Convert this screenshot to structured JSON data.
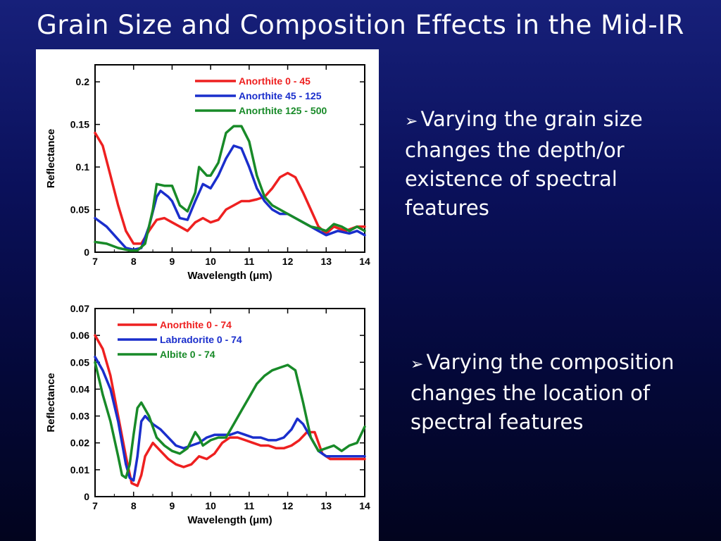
{
  "slide": {
    "title": "Grain Size and Composition Effects in the Mid-IR",
    "bullets": [
      {
        "marker": "➢",
        "text": "Varying the grain size changes the depth/or existence of spectral features"
      },
      {
        "marker": "➢",
        "text": "Varying the composition changes the location of spectral features"
      }
    ]
  },
  "chart_data": [
    {
      "type": "line",
      "xlabel": "Wavelength (μm)",
      "ylabel": "Reflectance",
      "xlim": [
        7,
        14
      ],
      "ylim": [
        0,
        0.22
      ],
      "xticks": [
        7,
        8,
        9,
        10,
        11,
        12,
        13,
        14
      ],
      "yticks": [
        0,
        0.05,
        0.1,
        0.15,
        0.2
      ],
      "ytick_labels": [
        "0",
        "0.05",
        "0.1",
        "0.15",
        "0.2"
      ],
      "legend_position": "top-right",
      "series": [
        {
          "name": "Anorthite 0 - 45",
          "color": "#ee2020",
          "points": [
            [
              7,
              0.14
            ],
            [
              7.2,
              0.125
            ],
            [
              7.4,
              0.09
            ],
            [
              7.6,
              0.055
            ],
            [
              7.8,
              0.025
            ],
            [
              8.0,
              0.01
            ],
            [
              8.2,
              0.01
            ],
            [
              8.4,
              0.025
            ],
            [
              8.6,
              0.038
            ],
            [
              8.8,
              0.04
            ],
            [
              9.0,
              0.035
            ],
            [
              9.2,
              0.03
            ],
            [
              9.4,
              0.025
            ],
            [
              9.6,
              0.035
            ],
            [
              9.8,
              0.04
            ],
            [
              10.0,
              0.035
            ],
            [
              10.2,
              0.038
            ],
            [
              10.4,
              0.05
            ],
            [
              10.6,
              0.055
            ],
            [
              10.8,
              0.06
            ],
            [
              11.0,
              0.06
            ],
            [
              11.2,
              0.062
            ],
            [
              11.4,
              0.065
            ],
            [
              11.6,
              0.075
            ],
            [
              11.8,
              0.088
            ],
            [
              12.0,
              0.093
            ],
            [
              12.2,
              0.088
            ],
            [
              12.4,
              0.07
            ],
            [
              12.6,
              0.05
            ],
            [
              12.8,
              0.03
            ],
            [
              13.0,
              0.022
            ],
            [
              13.2,
              0.03
            ],
            [
              13.5,
              0.025
            ],
            [
              13.8,
              0.03
            ],
            [
              14.0,
              0.03
            ]
          ]
        },
        {
          "name": "Anorthite 45 - 125",
          "color": "#1a2ecc",
          "points": [
            [
              7,
              0.04
            ],
            [
              7.3,
              0.03
            ],
            [
              7.6,
              0.015
            ],
            [
              7.8,
              0.005
            ],
            [
              8.0,
              0.003
            ],
            [
              8.2,
              0.005
            ],
            [
              8.4,
              0.03
            ],
            [
              8.6,
              0.065
            ],
            [
              8.7,
              0.072
            ],
            [
              8.9,
              0.065
            ],
            [
              9.0,
              0.06
            ],
            [
              9.2,
              0.04
            ],
            [
              9.4,
              0.038
            ],
            [
              9.6,
              0.06
            ],
            [
              9.8,
              0.08
            ],
            [
              10.0,
              0.075
            ],
            [
              10.2,
              0.09
            ],
            [
              10.4,
              0.11
            ],
            [
              10.6,
              0.125
            ],
            [
              10.8,
              0.122
            ],
            [
              11.0,
              0.1
            ],
            [
              11.2,
              0.075
            ],
            [
              11.4,
              0.06
            ],
            [
              11.6,
              0.05
            ],
            [
              11.8,
              0.045
            ],
            [
              12.0,
              0.045
            ],
            [
              12.2,
              0.04
            ],
            [
              12.4,
              0.035
            ],
            [
              12.6,
              0.03
            ],
            [
              12.8,
              0.025
            ],
            [
              13.0,
              0.02
            ],
            [
              13.3,
              0.025
            ],
            [
              13.6,
              0.022
            ],
            [
              13.8,
              0.025
            ],
            [
              14.0,
              0.02
            ]
          ]
        },
        {
          "name": "Anorthite 125 - 500",
          "color": "#188a28",
          "points": [
            [
              7,
              0.012
            ],
            [
              7.3,
              0.01
            ],
            [
              7.6,
              0.005
            ],
            [
              7.9,
              0.002
            ],
            [
              8.1,
              0.002
            ],
            [
              8.3,
              0.01
            ],
            [
              8.5,
              0.05
            ],
            [
              8.6,
              0.08
            ],
            [
              8.8,
              0.078
            ],
            [
              9.0,
              0.078
            ],
            [
              9.2,
              0.055
            ],
            [
              9.4,
              0.048
            ],
            [
              9.6,
              0.07
            ],
            [
              9.7,
              0.1
            ],
            [
              9.9,
              0.09
            ],
            [
              10.0,
              0.09
            ],
            [
              10.2,
              0.105
            ],
            [
              10.4,
              0.14
            ],
            [
              10.6,
              0.148
            ],
            [
              10.8,
              0.148
            ],
            [
              11.0,
              0.13
            ],
            [
              11.2,
              0.09
            ],
            [
              11.4,
              0.065
            ],
            [
              11.6,
              0.055
            ],
            [
              11.8,
              0.05
            ],
            [
              12.0,
              0.045
            ],
            [
              12.2,
              0.04
            ],
            [
              12.4,
              0.035
            ],
            [
              12.6,
              0.03
            ],
            [
              12.8,
              0.028
            ],
            [
              13.0,
              0.025
            ],
            [
              13.2,
              0.033
            ],
            [
              13.4,
              0.03
            ],
            [
              13.6,
              0.025
            ],
            [
              13.8,
              0.03
            ],
            [
              14.0,
              0.025
            ]
          ]
        }
      ]
    },
    {
      "type": "line",
      "xlabel": "Wavelength (μm)",
      "ylabel": "Reflectance",
      "xlim": [
        7,
        14
      ],
      "ylim": [
        0,
        0.07
      ],
      "xticks": [
        7,
        8,
        9,
        10,
        11,
        12,
        13,
        14
      ],
      "yticks": [
        0,
        0.01,
        0.02,
        0.03,
        0.04,
        0.05,
        0.06,
        0.07
      ],
      "ytick_labels": [
        "0",
        "0.01",
        "0.02",
        "0.03",
        "0.04",
        "0.05",
        "0.06",
        "0.07"
      ],
      "legend_position": "top-left",
      "series": [
        {
          "name": "Anorthite 0 - 74",
          "color": "#ee2020",
          "points": [
            [
              7,
              0.06
            ],
            [
              7.2,
              0.055
            ],
            [
              7.4,
              0.045
            ],
            [
              7.6,
              0.03
            ],
            [
              7.8,
              0.015
            ],
            [
              7.95,
              0.005
            ],
            [
              8.1,
              0.004
            ],
            [
              8.2,
              0.008
            ],
            [
              8.3,
              0.015
            ],
            [
              8.5,
              0.02
            ],
            [
              8.7,
              0.017
            ],
            [
              8.9,
              0.014
            ],
            [
              9.1,
              0.012
            ],
            [
              9.3,
              0.011
            ],
            [
              9.5,
              0.012
            ],
            [
              9.7,
              0.015
            ],
            [
              9.9,
              0.014
            ],
            [
              10.1,
              0.016
            ],
            [
              10.3,
              0.02
            ],
            [
              10.5,
              0.022
            ],
            [
              10.7,
              0.022
            ],
            [
              10.9,
              0.021
            ],
            [
              11.1,
              0.02
            ],
            [
              11.3,
              0.019
            ],
            [
              11.5,
              0.019
            ],
            [
              11.7,
              0.018
            ],
            [
              11.9,
              0.018
            ],
            [
              12.1,
              0.019
            ],
            [
              12.3,
              0.021
            ],
            [
              12.5,
              0.024
            ],
            [
              12.7,
              0.024
            ],
            [
              12.9,
              0.016
            ],
            [
              13.1,
              0.014
            ],
            [
              13.4,
              0.014
            ],
            [
              13.7,
              0.014
            ],
            [
              14.0,
              0.014
            ]
          ]
        },
        {
          "name": "Labradorite 0 - 74",
          "color": "#1a2ecc",
          "points": [
            [
              7,
              0.052
            ],
            [
              7.2,
              0.047
            ],
            [
              7.4,
              0.04
            ],
            [
              7.6,
              0.028
            ],
            [
              7.8,
              0.012
            ],
            [
              7.9,
              0.007
            ],
            [
              8.0,
              0.006
            ],
            [
              8.1,
              0.015
            ],
            [
              8.2,
              0.028
            ],
            [
              8.3,
              0.03
            ],
            [
              8.5,
              0.027
            ],
            [
              8.7,
              0.025
            ],
            [
              8.9,
              0.022
            ],
            [
              9.1,
              0.019
            ],
            [
              9.3,
              0.018
            ],
            [
              9.5,
              0.019
            ],
            [
              9.7,
              0.02
            ],
            [
              9.9,
              0.022
            ],
            [
              10.1,
              0.023
            ],
            [
              10.3,
              0.023
            ],
            [
              10.5,
              0.023
            ],
            [
              10.7,
              0.024
            ],
            [
              10.9,
              0.023
            ],
            [
              11.1,
              0.022
            ],
            [
              11.3,
              0.022
            ],
            [
              11.5,
              0.021
            ],
            [
              11.7,
              0.021
            ],
            [
              11.9,
              0.022
            ],
            [
              12.1,
              0.025
            ],
            [
              12.25,
              0.029
            ],
            [
              12.4,
              0.027
            ],
            [
              12.6,
              0.022
            ],
            [
              12.8,
              0.017
            ],
            [
              13.0,
              0.015
            ],
            [
              13.3,
              0.015
            ],
            [
              13.6,
              0.015
            ],
            [
              14.0,
              0.015
            ]
          ]
        },
        {
          "name": "Albite 0 - 74",
          "color": "#188a28",
          "points": [
            [
              7,
              0.05
            ],
            [
              7.2,
              0.038
            ],
            [
              7.4,
              0.028
            ],
            [
              7.6,
              0.015
            ],
            [
              7.7,
              0.008
            ],
            [
              7.8,
              0.007
            ],
            [
              7.9,
              0.012
            ],
            [
              8.0,
              0.023
            ],
            [
              8.1,
              0.033
            ],
            [
              8.2,
              0.035
            ],
            [
              8.4,
              0.03
            ],
            [
              8.6,
              0.022
            ],
            [
              8.8,
              0.019
            ],
            [
              9.0,
              0.017
            ],
            [
              9.2,
              0.016
            ],
            [
              9.4,
              0.018
            ],
            [
              9.6,
              0.024
            ],
            [
              9.7,
              0.022
            ],
            [
              9.8,
              0.019
            ],
            [
              10.0,
              0.021
            ],
            [
              10.2,
              0.022
            ],
            [
              10.4,
              0.022
            ],
            [
              10.6,
              0.027
            ],
            [
              10.8,
              0.032
            ],
            [
              11.0,
              0.037
            ],
            [
              11.2,
              0.042
            ],
            [
              11.4,
              0.045
            ],
            [
              11.6,
              0.047
            ],
            [
              11.8,
              0.048
            ],
            [
              12.0,
              0.049
            ],
            [
              12.2,
              0.047
            ],
            [
              12.4,
              0.035
            ],
            [
              12.6,
              0.022
            ],
            [
              12.8,
              0.017
            ],
            [
              13.0,
              0.018
            ],
            [
              13.2,
              0.019
            ],
            [
              13.4,
              0.017
            ],
            [
              13.6,
              0.019
            ],
            [
              13.8,
              0.02
            ],
            [
              14.0,
              0.026
            ]
          ]
        }
      ]
    }
  ]
}
